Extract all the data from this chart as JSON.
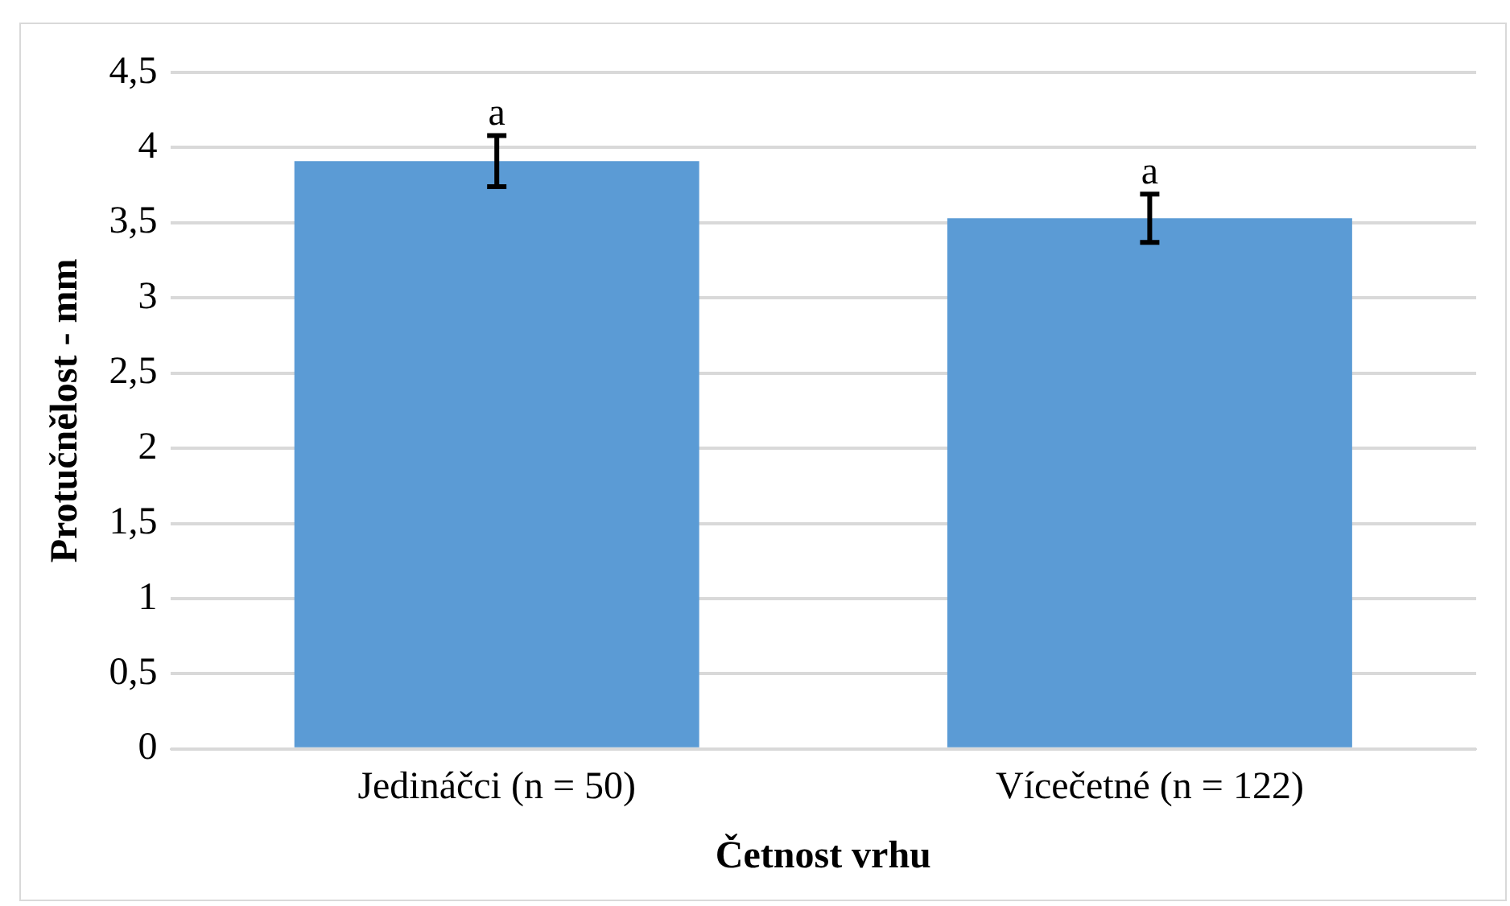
{
  "chart_data": {
    "type": "bar",
    "xlabel": "Četnost vrhu",
    "ylabel": "Protučnělost - mm",
    "categories": [
      "Jedináčci (n = 50)",
      "Vícečetné (n = 122)"
    ],
    "values": [
      3.91,
      3.53
    ],
    "errors": [
      0.17,
      0.16
    ],
    "color": "#5b9bd5",
    "ylim": [
      0,
      4.5
    ],
    "yticks": [
      0,
      {
        "value": 0.5,
        "label": "0,5"
      },
      1,
      {
        "value": 1.5,
        "label": "1,5"
      },
      2,
      {
        "value": 2.5,
        "label": "2,5"
      },
      3,
      {
        "value": 3.5,
        "label": "3,5"
      },
      4,
      {
        "value": 4.5,
        "label": "4,5"
      }
    ],
    "grid": "y",
    "annotations": [
      {
        "text": "a",
        "x": "Jedináčci (n = 50)",
        "y": 4.08
      },
      {
        "text": "a",
        "x": "Vícečetné (n = 122)",
        "y": 3.69
      }
    ]
  }
}
